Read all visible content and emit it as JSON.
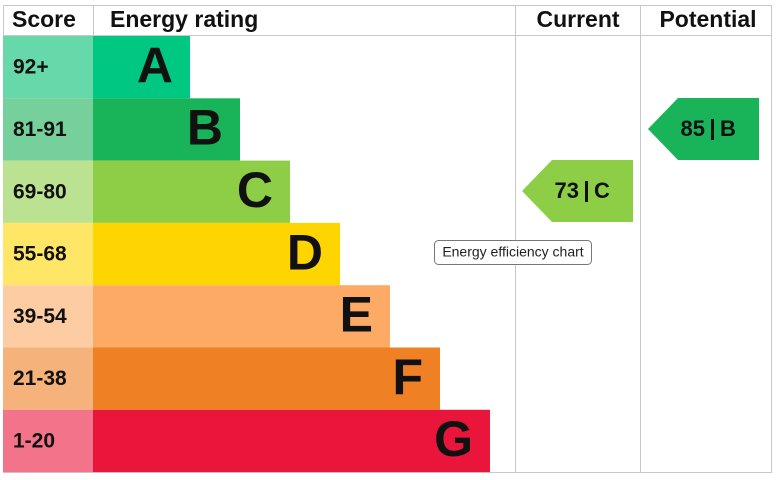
{
  "header": {
    "score": "Score",
    "rating": "Energy rating",
    "current": "Current",
    "potential": "Potential"
  },
  "bands": [
    {
      "score": "92+",
      "letter": "A"
    },
    {
      "score": "81-91",
      "letter": "B"
    },
    {
      "score": "69-80",
      "letter": "C"
    },
    {
      "score": "55-68",
      "letter": "D"
    },
    {
      "score": "39-54",
      "letter": "E"
    },
    {
      "score": "21-38",
      "letter": "F"
    },
    {
      "score": "1-20",
      "letter": "G"
    }
  ],
  "current": {
    "value": 73,
    "letter": "C"
  },
  "potential": {
    "value": 85,
    "letter": "B"
  },
  "tooltip": "Energy efficiency chart"
}
